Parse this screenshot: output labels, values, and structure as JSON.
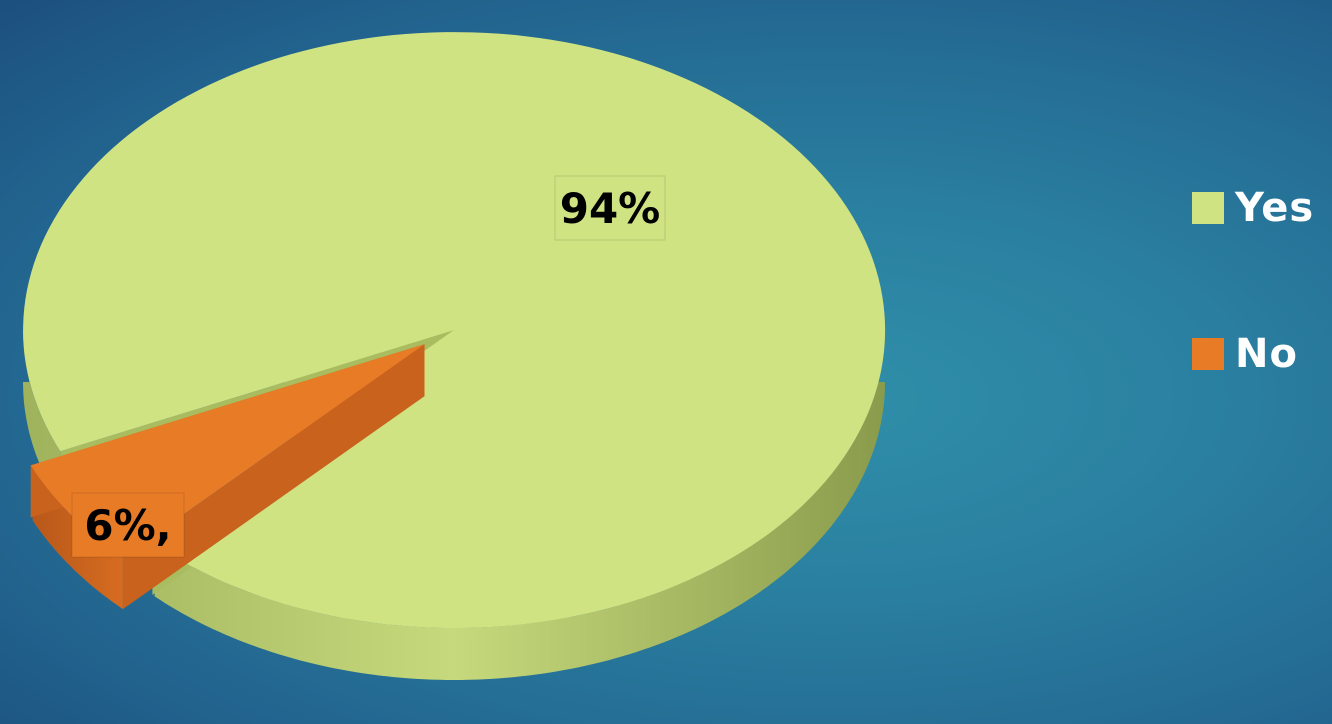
{
  "chart_data": {
    "type": "pie",
    "categories": [
      "Yes",
      "No"
    ],
    "values": [
      94,
      6
    ],
    "colors": [
      "#cfe383",
      "#e87b26"
    ],
    "data_labels": [
      "94%",
      "6%,"
    ],
    "legend": "right",
    "style": "3d-exploded"
  }
}
